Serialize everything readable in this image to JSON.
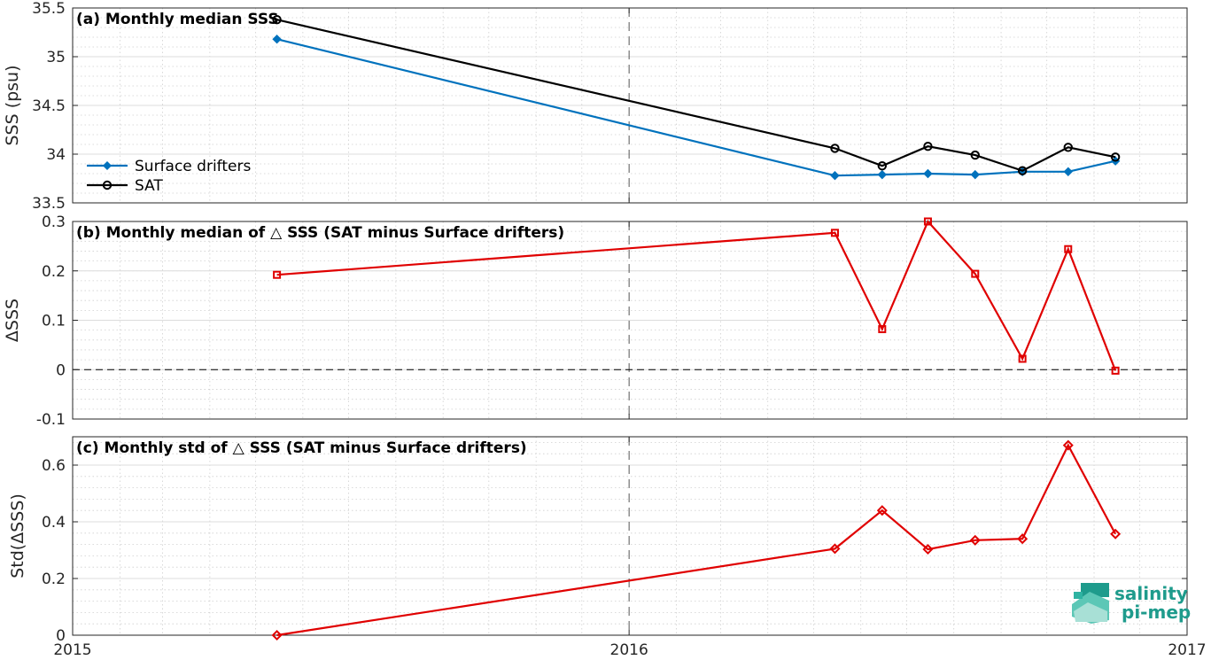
{
  "chart_data": [
    {
      "type": "line",
      "title": "(a) Monthly median SSS",
      "xlabel": "",
      "ylabel": "SSS (psu)",
      "xlim": [
        "2015-01-01",
        "2017-01-01"
      ],
      "ylim": [
        33.5,
        35.5
      ],
      "y_ticks": [
        "33.5",
        "34",
        "34.5",
        "35",
        "35.5"
      ],
      "grid": true,
      "legend_position": "left",
      "series": [
        {
          "name": "Surface drifters",
          "color": "#0072BD",
          "marker": "diamond",
          "x": [
            "2015-05-15",
            "2016-05-15",
            "2016-06-15",
            "2016-07-15",
            "2016-08-15",
            "2016-09-15",
            "2016-10-15",
            "2016-11-15"
          ],
          "values": [
            35.18,
            33.78,
            33.79,
            33.8,
            33.79,
            33.82,
            33.82,
            33.93
          ]
        },
        {
          "name": "SAT",
          "color": "#000000",
          "marker": "circle",
          "x": [
            "2015-05-15",
            "2016-05-15",
            "2016-06-15",
            "2016-07-15",
            "2016-08-15",
            "2016-09-15",
            "2016-10-15",
            "2016-11-15"
          ],
          "values": [
            35.38,
            34.06,
            33.88,
            34.08,
            33.99,
            33.83,
            34.07,
            33.97
          ]
        }
      ]
    },
    {
      "type": "line",
      "title": "(b) Monthly median of △ SSS (SAT minus Surface drifters)",
      "xlabel": "",
      "ylabel": "ΔSSS",
      "xlim": [
        "2015-01-01",
        "2017-01-01"
      ],
      "ylim": [
        -0.1,
        0.3
      ],
      "y_ticks": [
        "-0.1",
        "0",
        "0.1",
        "0.2",
        "0.3"
      ],
      "grid": true,
      "zero_line": true,
      "series": [
        {
          "color": "#E00000",
          "marker": "square",
          "x": [
            "2015-05-15",
            "2016-05-15",
            "2016-06-15",
            "2016-07-15",
            "2016-08-15",
            "2016-09-15",
            "2016-10-15",
            "2016-11-15"
          ],
          "values": [
            0.192,
            0.277,
            0.082,
            0.3,
            0.194,
            0.022,
            0.244,
            -0.002
          ]
        }
      ]
    },
    {
      "type": "line",
      "title": "(c) Monthly std of △ SSS (SAT minus Surface drifters)",
      "xlabel": "",
      "ylabel": "Std(ΔSSS)",
      "xlim": [
        "2015-01-01",
        "2017-01-01"
      ],
      "ylim": [
        0,
        0.7
      ],
      "y_ticks": [
        "0",
        "0.2",
        "0.4",
        "0.6"
      ],
      "x_ticks": [
        "2015",
        "2016",
        "2017"
      ],
      "grid": true,
      "series": [
        {
          "color": "#E00000",
          "marker": "diamond",
          "x": [
            "2015-05-15",
            "2016-05-15",
            "2016-06-15",
            "2016-07-15",
            "2016-08-15",
            "2016-09-15",
            "2016-10-15",
            "2016-11-15"
          ],
          "values": [
            0.0,
            0.305,
            0.44,
            0.303,
            0.335,
            0.34,
            0.67,
            0.357
          ]
        }
      ]
    }
  ],
  "logo": {
    "line1": "salinity",
    "line2": "pi-mep",
    "color": "#1E9B8C"
  }
}
